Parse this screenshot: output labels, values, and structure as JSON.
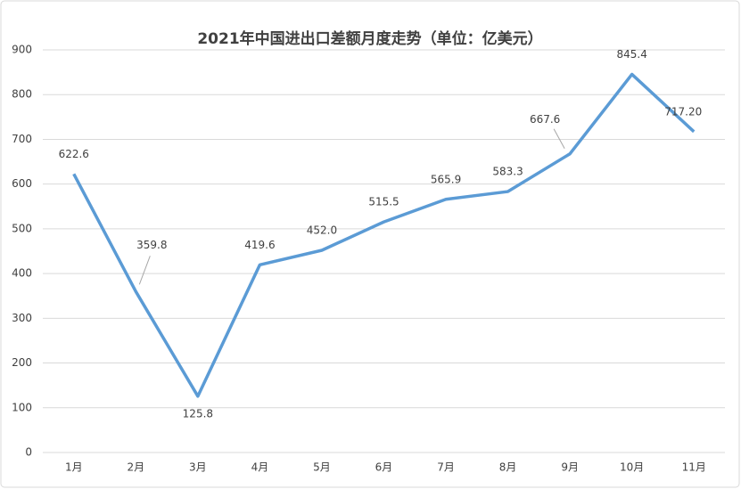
{
  "chart_data": {
    "type": "line",
    "title": "2021年中国进出口差额月度走势（单位：亿美元）",
    "categories": [
      "1月",
      "2月",
      "3月",
      "4月",
      "5月",
      "6月",
      "7月",
      "8月",
      "9月",
      "10月",
      "11月"
    ],
    "series": [
      {
        "color": "#5b9bd5",
        "values": [
          622.6,
          359.8,
          125.8,
          419.6,
          452.0,
          515.5,
          565.9,
          583.3,
          667.6,
          845.4,
          717.2
        ],
        "value_labels": [
          "622.6",
          "359.8",
          "125.8",
          "419.6",
          "452.0",
          "515.5",
          "565.9",
          "583.3",
          "667.6",
          "845.4",
          "717.20"
        ]
      }
    ],
    "ylim": [
      0,
      900
    ],
    "yticks": [
      0,
      100,
      200,
      300,
      400,
      500,
      600,
      700,
      800,
      900
    ],
    "grid": true
  }
}
